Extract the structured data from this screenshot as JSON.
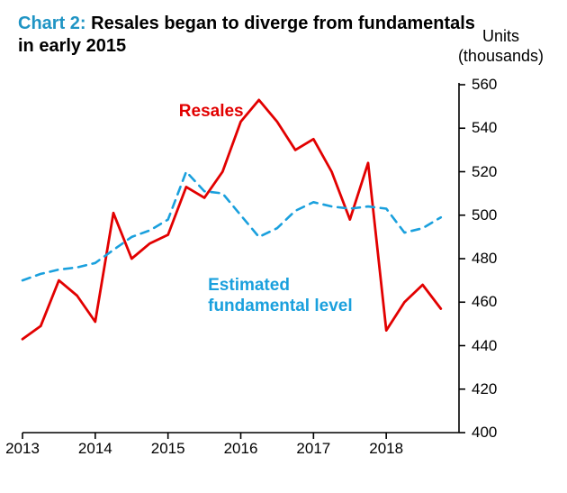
{
  "title": {
    "prefix": "Chart 2:",
    "main": "Resales began to diverge from fundamentals in early 2015",
    "prefix_color": "#1f94c4",
    "main_color": "#000000",
    "fontsize": 20
  },
  "axis_unit": {
    "line1": "Units",
    "line2": "(thousands)",
    "fontsize": 18
  },
  "chart": {
    "type": "line",
    "background_color": "#ffffff",
    "axis_color": "#000000",
    "axis_line_width": 1.6,
    "xlim": [
      2013,
      2019
    ],
    "ylim": [
      400,
      560
    ],
    "xticks": [
      2013,
      2014,
      2015,
      2016,
      2017,
      2018
    ],
    "yticks": [
      400,
      420,
      440,
      460,
      480,
      500,
      520,
      540,
      560
    ],
    "tick_fontsize": 17,
    "series": [
      {
        "name": "Resales",
        "label": "Resales",
        "label_color": "#e20000",
        "label_pos": {
          "x": 2015.15,
          "y": 552
        },
        "color": "#e20000",
        "line_width": 2.8,
        "dash": null,
        "x": [
          2013.0,
          2013.25,
          2013.5,
          2013.75,
          2014.0,
          2014.25,
          2014.5,
          2014.75,
          2015.0,
          2015.25,
          2015.5,
          2015.75,
          2016.0,
          2016.25,
          2016.5,
          2016.75,
          2017.0,
          2017.25,
          2017.5,
          2017.75,
          2018.0,
          2018.25,
          2018.5,
          2018.75
        ],
        "y": [
          443,
          449,
          470,
          463,
          451,
          501,
          480,
          487,
          491,
          513,
          508,
          520,
          543,
          553,
          543,
          530,
          535,
          520,
          498,
          524,
          447,
          460,
          468,
          457
        ]
      },
      {
        "name": "Estimated fundamental level",
        "label": "Estimated\nfundamental level",
        "label_color": "#1aa0dd",
        "label_pos": {
          "x": 2015.55,
          "y": 472
        },
        "color": "#1aa0dd",
        "line_width": 2.6,
        "dash": [
          9,
          7
        ],
        "x": [
          2013.0,
          2013.25,
          2013.5,
          2013.75,
          2014.0,
          2014.25,
          2014.5,
          2014.75,
          2015.0,
          2015.25,
          2015.5,
          2015.75,
          2016.0,
          2016.25,
          2016.5,
          2016.75,
          2017.0,
          2017.25,
          2017.5,
          2017.75,
          2018.0,
          2018.25,
          2018.5,
          2018.75
        ],
        "y": [
          470,
          473,
          475,
          476,
          478,
          484,
          490,
          493,
          498,
          520,
          511,
          510,
          500,
          490,
          494,
          502,
          506,
          504,
          503,
          504,
          503,
          492,
          494,
          499
        ]
      }
    ],
    "series_label_fontsize": 19
  }
}
